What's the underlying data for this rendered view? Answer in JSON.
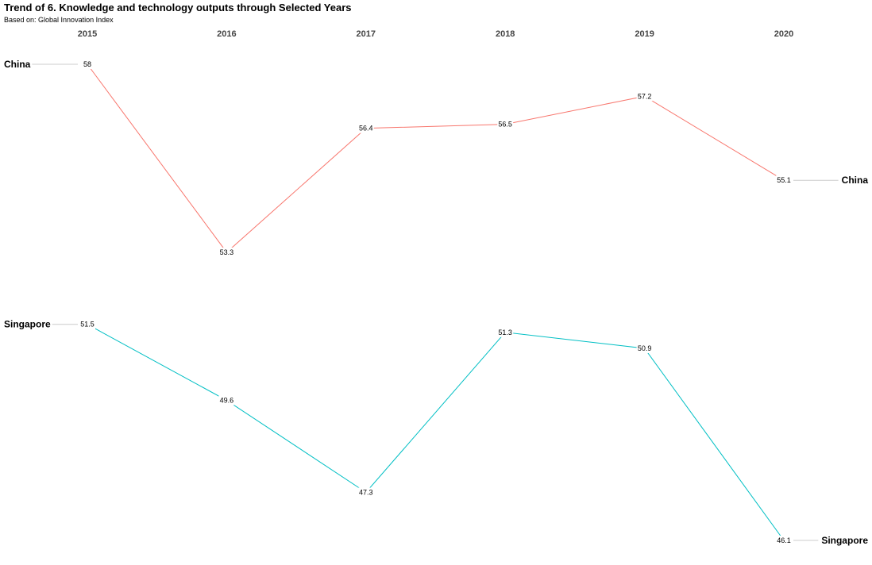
{
  "chart_data": {
    "type": "line",
    "title": "Trend of 6. Knowledge and technology outputs through Selected Years",
    "subtitle": "Based on: Global Innovation Index",
    "x": [
      "2015",
      "2016",
      "2017",
      "2018",
      "2019",
      "2020"
    ],
    "series": [
      {
        "name": "China",
        "color": "#f8766d",
        "values": [
          58,
          53.3,
          56.4,
          56.5,
          57.2,
          55.1
        ]
      },
      {
        "name": "Singapore",
        "color": "#00bfc4",
        "values": [
          51.5,
          49.6,
          47.3,
          51.3,
          50.9,
          46.1
        ]
      }
    ],
    "ylim": [
      46.1,
      58
    ],
    "grid": false,
    "legend": "none"
  }
}
